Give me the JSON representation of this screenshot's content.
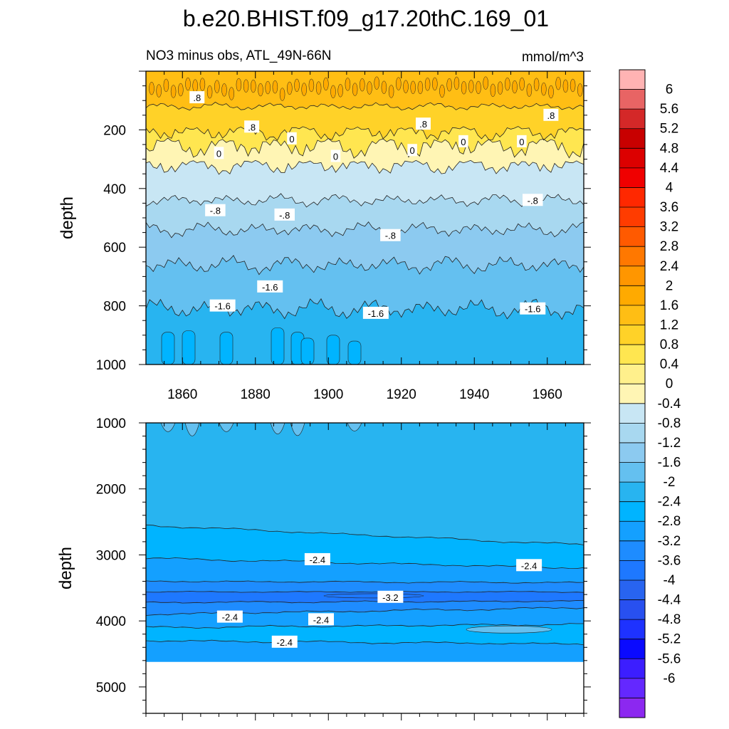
{
  "chart_data": {
    "type": "contour",
    "title": "b.e20.BHIST.f09_g17.20thC.169_01",
    "variable_label": "NO3 minus obs, ATL_49N-66N",
    "units": "mmol/m^3",
    "panels": [
      {
        "name": "upper",
        "xlim": [
          1850,
          1970
        ],
        "ylim": [
          1000,
          0
        ],
        "ylabel": "depth",
        "xticks": [
          1860,
          1880,
          1900,
          1920,
          1940,
          1960
        ],
        "yticks": [
          200,
          400,
          600,
          800,
          1000
        ],
        "contour_labels": [
          {
            "text": ".8",
            "x": 1864,
            "y": 90
          },
          {
            "text": ".8",
            "x": 1879,
            "y": 190
          },
          {
            "text": ".8",
            "x": 1926,
            "y": 180
          },
          {
            "text": ".8",
            "x": 1961,
            "y": 150
          },
          {
            "text": "0",
            "x": 1870,
            "y": 280
          },
          {
            "text": "0",
            "x": 1890,
            "y": 230
          },
          {
            "text": "0",
            "x": 1902,
            "y": 290
          },
          {
            "text": "0",
            "x": 1923,
            "y": 270
          },
          {
            "text": "0",
            "x": 1937,
            "y": 240
          },
          {
            "text": "0",
            "x": 1953,
            "y": 240
          },
          {
            "text": "-.8",
            "x": 1869,
            "y": 475
          },
          {
            "text": "-.8",
            "x": 1888,
            "y": 490
          },
          {
            "text": "-.8",
            "x": 1917,
            "y": 560
          },
          {
            "text": "-.8",
            "x": 1956,
            "y": 440
          },
          {
            "text": "-1.6",
            "x": 1871,
            "y": 800
          },
          {
            "text": "-1.6",
            "x": 1884,
            "y": 735
          },
          {
            "text": "-1.6",
            "x": 1913,
            "y": 825
          },
          {
            "text": "-1.6",
            "x": 1956,
            "y": 810
          }
        ]
      },
      {
        "name": "lower",
        "xlim": [
          1850,
          1970
        ],
        "ylim": [
          5400,
          1000
        ],
        "ylabel": "depth",
        "yticks": [
          1000,
          2000,
          3000,
          4000,
          5000
        ],
        "contour_labels": [
          {
            "text": "-2.4",
            "x": 1897,
            "y": 3070
          },
          {
            "text": "-2.4",
            "x": 1955,
            "y": 3160
          },
          {
            "text": "-3.2",
            "x": 1917,
            "y": 3640
          },
          {
            "text": "-2.4",
            "x": 1873,
            "y": 3940
          },
          {
            "text": "-2.4",
            "x": 1898,
            "y": 3980
          },
          {
            "text": "-2.4",
            "x": 1888,
            "y": 4320
          }
        ]
      }
    ],
    "colorbar": {
      "labels": [
        "6",
        "5.6",
        "5.2",
        "4.8",
        "4.4",
        "4",
        "3.6",
        "3.2",
        "2.8",
        "2.4",
        "2",
        "1.6",
        "1.2",
        "0.8",
        "0.4",
        "0",
        "-0.4",
        "-0.8",
        "-1.2",
        "-1.6",
        "-2",
        "-2.4",
        "-2.8",
        "-3.2",
        "-3.6",
        "-4",
        "-4.4",
        "-4.8",
        "-5.2",
        "-5.6",
        "-6"
      ],
      "colors": [
        "#ffb3b3",
        "#e86464",
        "#d42828",
        "#c80000",
        "#dc0000",
        "#f00000",
        "#ff2800",
        "#ff3c00",
        "#ff5a00",
        "#ff7800",
        "#ff9600",
        "#ffaa00",
        "#ffbe14",
        "#ffd228",
        "#ffe650",
        "#fff08c",
        "#fff5b4",
        "#c8e6f4",
        "#a8d8f0",
        "#8ccaf0",
        "#64c0f0",
        "#28b4f0",
        "#00b4ff",
        "#14a0ff",
        "#1e8cff",
        "#1e78ff",
        "#2864f0",
        "#2850f0",
        "#1e32ff",
        "#0a0aff",
        "#3c1eff",
        "#6428ff",
        "#8c28f0"
      ]
    }
  }
}
